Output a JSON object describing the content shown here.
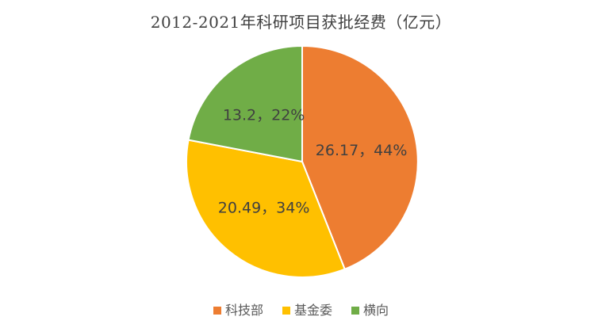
{
  "chart_data": {
    "type": "pie",
    "title": "2012-2021年科研项目获批经费（亿元）",
    "title_color": "#404040",
    "label_color": "#404040",
    "legend_text_color": "#595959",
    "legend_position": "bottom",
    "direction": "clockwise",
    "start_angle_deg": 0,
    "background": "#ffffff",
    "slice_border_color": "#ffffff",
    "slices": [
      {
        "name": "科技部",
        "value": 26.17,
        "percent": 44,
        "label": "26.17，44%",
        "color": "#ED7D31"
      },
      {
        "name": "基金委",
        "value": 20.49,
        "percent": 34,
        "label": "20.49，34%",
        "color": "#FFC000"
      },
      {
        "name": "横向",
        "value": 13.2,
        "percent": 22,
        "label": "13.2，22%",
        "color": "#70AD47"
      }
    ]
  }
}
